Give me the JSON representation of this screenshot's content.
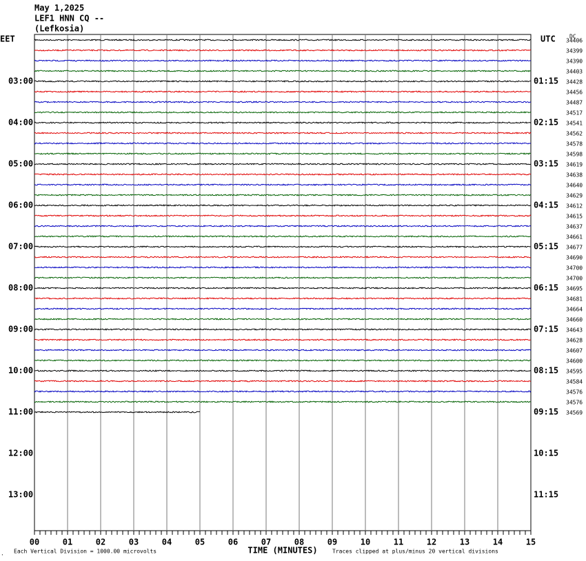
{
  "header": {
    "lines": [
      "May 1,2025",
      "LEF1 HNN CQ --",
      "(Lefkosia)"
    ]
  },
  "left_axis": {
    "title": "EET",
    "labels": [
      "03:00",
      "04:00",
      "05:00",
      "06:00",
      "07:00",
      "08:00",
      "09:00",
      "10:00",
      "11:00",
      "12:00",
      "13:00"
    ]
  },
  "right_axis": {
    "title": "UTC",
    "labels": [
      "01:15",
      "02:15",
      "03:15",
      "04:15",
      "05:15",
      "06:15",
      "07:15",
      "08:15",
      "09:15",
      "10:15",
      "11:15"
    ]
  },
  "dc": {
    "title": "DC",
    "values": [
      "34406",
      "34399",
      "34390",
      "34403",
      "34428",
      "34456",
      "34487",
      "34517",
      "34541",
      "34562",
      "34578",
      "34598",
      "34619",
      "34638",
      "34640",
      "34629",
      "34612",
      "34615",
      "34637",
      "34661",
      "34677",
      "34690",
      "34700",
      "34700",
      "34695",
      "34681",
      "34664",
      "34660",
      "34643",
      "34628",
      "34607",
      "34600",
      "34595",
      "34584",
      "34576",
      "34576",
      "34569"
    ]
  },
  "x_axis": {
    "labels": [
      "00",
      "01",
      "02",
      "03",
      "04",
      "05",
      "06",
      "07",
      "08",
      "09",
      "10",
      "11",
      "12",
      "13",
      "14",
      "15"
    ],
    "title": "TIME (MINUTES)"
  },
  "footer": {
    "scale_note": "Each Vertical Division = 1000.00 microvolts",
    "clip_note": "Traces clipped at plus/minus 20 vertical divisions"
  }
}
